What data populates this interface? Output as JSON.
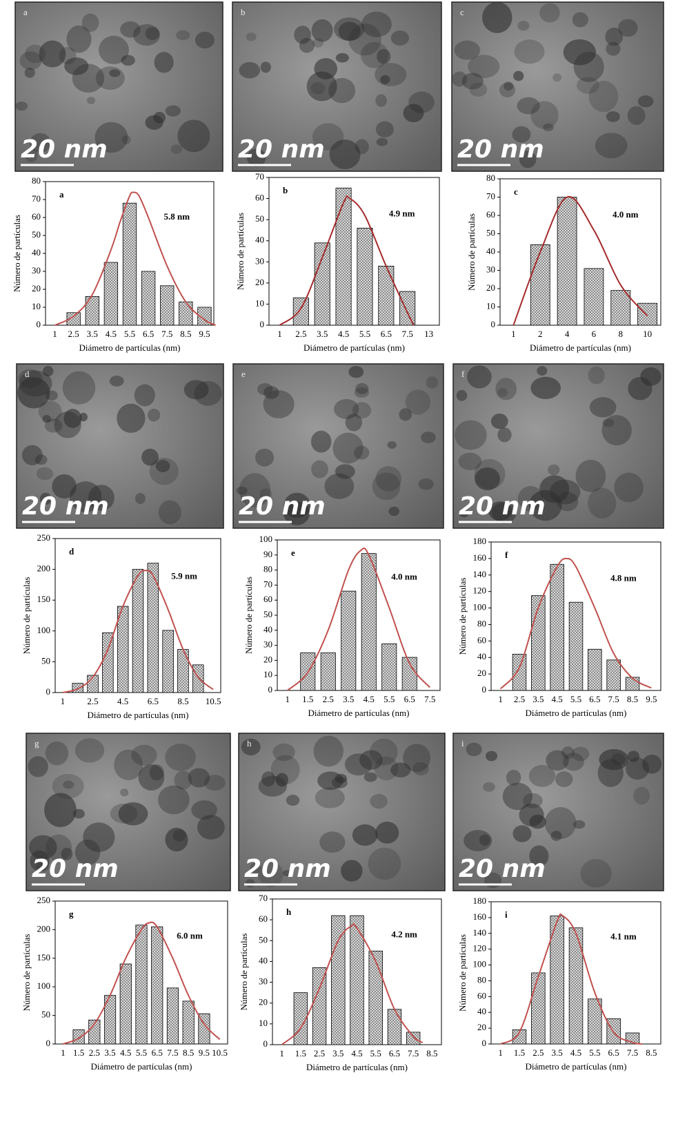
{
  "images": [
    {
      "label": "a",
      "scale": "20 nm"
    },
    {
      "label": "b",
      "scale": "20 nm"
    },
    {
      "label": "c",
      "scale": "20 nm"
    },
    {
      "label": "d",
      "scale": "20 nm"
    },
    {
      "label": "e",
      "scale": "20 nm"
    },
    {
      "label": "f",
      "scale": "20 nm"
    },
    {
      "label": "g",
      "scale": "20 nm"
    },
    {
      "label": "h",
      "scale": "20 nm"
    },
    {
      "label": "i",
      "scale": "20 nm"
    }
  ],
  "chart_data": [
    {
      "type": "bar",
      "panel": "a",
      "annotation": "5.8  nm",
      "xlabel": "Diámetro de partículas (nm)",
      "ylabel": "Número de partículas",
      "categories": [
        "1",
        "2.5",
        "3.5",
        "4.5",
        "5.5",
        "6.5",
        "7.5",
        "8.5",
        "9.5"
      ],
      "values": [
        null,
        7,
        16,
        35,
        68,
        30,
        22,
        13,
        10
      ],
      "ylim": [
        0,
        80
      ],
      "yticks": [
        0,
        10,
        20,
        30,
        40,
        50,
        60,
        70,
        80
      ],
      "color": "#d9d9d9",
      "curve": {
        "color": "#c0504d",
        "x": [
          0,
          1,
          2,
          3,
          3.5,
          4,
          4.2,
          4.5,
          5,
          6,
          7,
          8,
          8.6
        ],
        "values": [
          0,
          5,
          17,
          42,
          58,
          72,
          74,
          72,
          60,
          33,
          13,
          3,
          0
        ]
      }
    },
    {
      "type": "bar",
      "panel": "b",
      "annotation": "4.9  nm",
      "xlabel": "Diámetro de partículas (nm)",
      "ylabel": "Número de partículas",
      "categories": [
        "1",
        "2.5",
        "3.5",
        "4.5",
        "5.5",
        "6.5",
        "7.5",
        "13"
      ],
      "values": [
        null,
        13,
        39,
        65,
        46,
        28,
        16,
        null
      ],
      "ylim": [
        0,
        70
      ],
      "yticks": [
        0,
        10,
        20,
        30,
        40,
        50,
        60,
        70
      ],
      "color": "#d9d9d9",
      "curve": {
        "color": "#a52a2a",
        "x": [
          0,
          1,
          2,
          3,
          3.3,
          4,
          5,
          6,
          6.3
        ],
        "values": [
          0,
          8,
          32,
          58,
          60,
          52,
          28,
          6,
          0
        ]
      }
    },
    {
      "type": "bar",
      "panel": "c",
      "annotation": "4.0  nm",
      "xlabel": "Diámetro de partículas (nm)",
      "ylabel": "Número de partículas",
      "categories": [
        "1",
        "2",
        "4",
        "6",
        "8",
        "10"
      ],
      "values": [
        null,
        44,
        70,
        31,
        19,
        12
      ],
      "ylim": [
        0,
        80
      ],
      "yticks": [
        0,
        10,
        20,
        30,
        40,
        50,
        60,
        70,
        80
      ],
      "color": "#d9d9d9",
      "curve": {
        "color": "#a52a2a",
        "x": [
          0,
          1,
          2,
          3,
          4,
          5
        ],
        "values": [
          0,
          40,
          70,
          52,
          22,
          5
        ]
      }
    },
    {
      "type": "bar",
      "panel": "d",
      "annotation": "5.9  nm",
      "xlabel": "Diámetro de partículas (nm)",
      "ylabel": "Número de partículas",
      "categories": [
        "1",
        null,
        "2.5",
        null,
        "4.5",
        null,
        "6.5",
        null,
        "8.5",
        null,
        "10.5"
      ],
      "values": [
        null,
        15,
        28,
        97,
        140,
        200,
        210,
        101,
        70,
        45,
        null
      ],
      "ylim": [
        0,
        250
      ],
      "yticks": [
        0,
        50,
        100,
        150,
        200,
        250
      ],
      "color": "#d9d9d9",
      "curve": {
        "color": "#c0504d",
        "x": [
          0,
          1,
          2,
          3,
          4,
          5,
          5.5,
          6,
          7,
          8,
          9,
          10
        ],
        "values": [
          0,
          6,
          25,
          70,
          140,
          190,
          198,
          190,
          135,
          70,
          25,
          5
        ]
      }
    },
    {
      "type": "bar",
      "panel": "e",
      "annotation": "4.0 nm",
      "xlabel": "Diámetro de partículas (nm)",
      "ylabel": "Número de partículas",
      "categories": [
        "1",
        "1.5",
        "2.5",
        "3.5",
        "4.5",
        "5.5",
        "6.5",
        "7.5"
      ],
      "values": [
        null,
        25,
        25,
        66,
        91,
        31,
        22,
        null
      ],
      "ylim": [
        0,
        100
      ],
      "yticks": [
        0,
        10,
        20,
        30,
        40,
        50,
        60,
        70,
        80,
        90,
        100
      ],
      "color": "#d9d9d9",
      "curve": {
        "color": "#c0504d",
        "x": [
          0,
          1,
          2,
          3,
          3.6,
          4,
          5,
          6,
          7
        ],
        "values": [
          0,
          12,
          40,
          80,
          93,
          90,
          55,
          18,
          2
        ]
      }
    },
    {
      "type": "bar",
      "panel": "f",
      "annotation": "4.8  nm",
      "xlabel": "Diámetro de partículas (nm)",
      "ylabel": "Número de partículas",
      "categories": [
        "1",
        "2.5",
        "3.5",
        "4.5",
        "5.5",
        "6.5",
        "7.5",
        "8.5",
        "9.5"
      ],
      "values": [
        null,
        44,
        115,
        153,
        107,
        50,
        37,
        16,
        null
      ],
      "ylim": [
        0,
        180
      ],
      "yticks": [
        0,
        20,
        40,
        60,
        80,
        100,
        120,
        140,
        160,
        180
      ],
      "color": "#d9d9d9",
      "curve": {
        "color": "#c0504d",
        "x": [
          0,
          1,
          2,
          3,
          3.5,
          4,
          5,
          6,
          7,
          8
        ],
        "values": [
          2,
          28,
          100,
          150,
          160,
          150,
          100,
          45,
          15,
          3
        ]
      }
    },
    {
      "type": "bar",
      "panel": "g",
      "annotation": "6.0  nm",
      "xlabel": "Diámetro de partículas (nm)",
      "ylabel": "Número de partículas",
      "categories": [
        "1",
        "1.5",
        "2.5",
        "3.5",
        "4.5",
        "5.5",
        "6.5",
        "7.5",
        "8.5",
        "9.5",
        "10.5"
      ],
      "values": [
        null,
        25,
        42,
        85,
        140,
        208,
        205,
        98,
        75,
        53,
        null
      ],
      "ylim": [
        0,
        250
      ],
      "yticks": [
        0,
        50,
        100,
        150,
        200,
        250
      ],
      "color": "#d9d9d9",
      "curve": {
        "color": "#c0504d",
        "x": [
          0,
          1,
          2,
          3,
          4,
          5,
          5.5,
          6,
          7,
          8,
          9,
          10
        ],
        "values": [
          0,
          10,
          35,
          85,
          150,
          200,
          212,
          205,
          150,
          85,
          35,
          8
        ]
      }
    },
    {
      "type": "bar",
      "panel": "h",
      "annotation": "4.2 nm",
      "xlabel": "Diámetro de partículas (nm)",
      "ylabel": "Número de partículas",
      "categories": [
        "1",
        "1.5",
        "2.5",
        "3.5",
        "4.5",
        "5.5",
        "6.5",
        "7.5",
        "8.5"
      ],
      "values": [
        null,
        25,
        37,
        62,
        62,
        45,
        17,
        6,
        null
      ],
      "ylim": [
        0,
        70
      ],
      "yticks": [
        0,
        10,
        20,
        30,
        40,
        50,
        60,
        70
      ],
      "color": "#d9d9d9",
      "curve": {
        "color": "#c0504d",
        "x": [
          0,
          1,
          2,
          3,
          3.7,
          4,
          5,
          6,
          7,
          7.5
        ],
        "values": [
          0,
          8,
          27,
          50,
          57,
          56,
          40,
          17,
          4,
          1
        ]
      }
    },
    {
      "type": "bar",
      "panel": "i",
      "annotation": "4.1  nm",
      "xlabel": "Diámetro de partículas (nm)",
      "ylabel": "Número de partículas",
      "categories": [
        "1",
        "1.5",
        "2.5",
        "3.5",
        "4.5",
        "5.5",
        "6.5",
        "7.5",
        "8.5"
      ],
      "values": [
        null,
        18,
        90,
        162,
        147,
        57,
        32,
        14,
        null
      ],
      "ylim": [
        0,
        180
      ],
      "yticks": [
        0,
        20,
        40,
        60,
        80,
        100,
        120,
        140,
        160,
        180
      ],
      "color": "#d9d9d9",
      "curve": {
        "color": "#c0504d",
        "x": [
          0,
          1,
          2,
          3,
          3.3,
          4,
          5,
          6,
          7,
          7.5
        ],
        "values": [
          0,
          15,
          85,
          155,
          162,
          140,
          65,
          15,
          2,
          0
        ]
      }
    }
  ]
}
